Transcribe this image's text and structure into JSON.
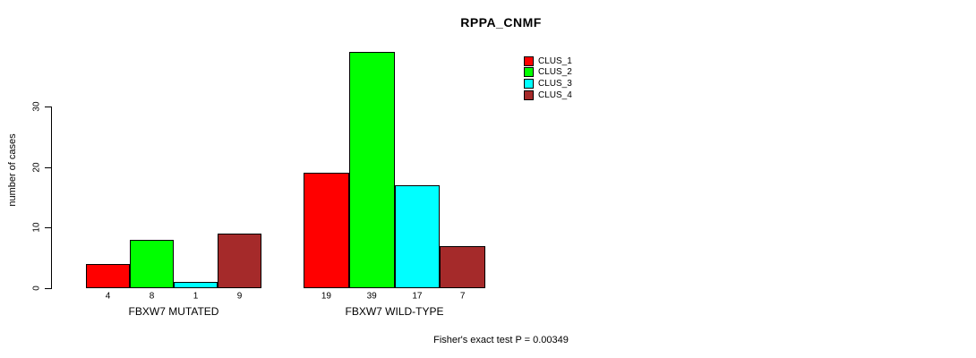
{
  "chart_data": {
    "type": "bar",
    "title": "RPPA_CNMF",
    "ylabel": "number of cases",
    "xlabel": "",
    "yticks": [
      0,
      10,
      20,
      30
    ],
    "ylim": [
      0,
      40
    ],
    "grid": false,
    "legend_position": "top-right",
    "categories": [
      "FBXW7 MUTATED",
      "FBXW7 WILD-TYPE"
    ],
    "series": [
      {
        "name": "CLUS_1",
        "color": "#FF0000",
        "values": [
          4,
          19
        ]
      },
      {
        "name": "CLUS_2",
        "color": "#00FF00",
        "values": [
          8,
          39
        ]
      },
      {
        "name": "CLUS_3",
        "color": "#00FFFF",
        "values": [
          1,
          17
        ]
      },
      {
        "name": "CLUS_4",
        "color": "#A52A2A",
        "values": [
          9,
          7
        ]
      }
    ],
    "bar_value_labels": {
      "FBXW7 MUTATED": [
        4,
        8,
        1,
        9
      ],
      "FBXW7 WILD-TYPE": [
        19,
        39,
        17,
        7
      ]
    },
    "annotation": "Fisher's exact test P = 0.00349"
  }
}
